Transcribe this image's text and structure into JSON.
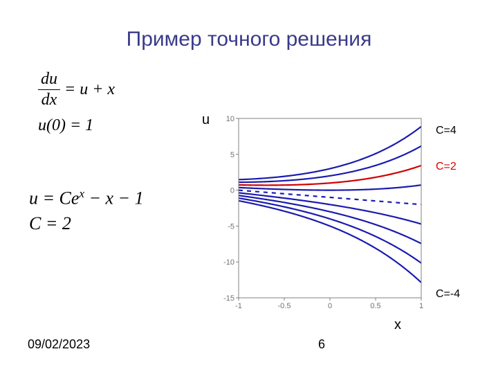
{
  "title": "Пример точного решения",
  "equations": {
    "frac_top": "du",
    "frac_bot": "dx",
    "rhs": " = u + x",
    "ic": "u(0) = 1",
    "solution": "u = Ce",
    "solution_sup": "x",
    "solution_tail": " − x − 1",
    "cval": "C = 2"
  },
  "axis_labels": {
    "u": "u",
    "x": "x"
  },
  "footer": {
    "date": "09/02/2023",
    "page": "6"
  },
  "legend": {
    "c4": "C=4",
    "c2": "C=2",
    "cn4": "C=-4"
  },
  "chart": {
    "type": "line",
    "xlim": [
      -1,
      1
    ],
    "ylim": [
      -15,
      10
    ],
    "xticks": [
      -1,
      -0.5,
      0,
      0.5,
      1
    ],
    "yticks": [
      -15,
      -10,
      -5,
      0,
      5,
      10
    ],
    "tick_fontsize": 11,
    "tick_color": "#707070",
    "box_color": "#808080",
    "grid": false,
    "bg": "#ffffff",
    "dashed_line": {
      "C": 0,
      "color": "#1a1ab0",
      "width": 2.2
    },
    "highlight_line": {
      "C": 2,
      "color": "#d00000",
      "width": 2.2
    },
    "curves_color": "#1a1ab0",
    "curves_width": 2.2,
    "C_values": [
      4,
      3,
      1,
      -1,
      -2,
      -3,
      -4
    ]
  }
}
